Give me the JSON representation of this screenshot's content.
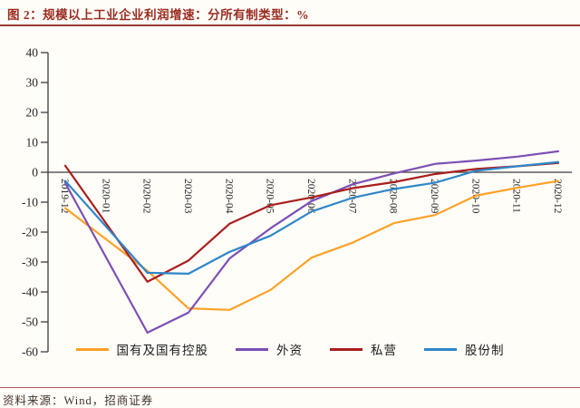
{
  "header": {
    "title": "图 2：规模以上工业企业利润增速：分所有制类型：%"
  },
  "footer": {
    "source": "资料来源：Wind，招商证券"
  },
  "colors": {
    "title_maroon": "#9a2b1f",
    "rule_maroon": "#9a3b2e",
    "footer_rule": "#a85a50",
    "axis_line": "#3d3d3d",
    "axis_text": "#262626",
    "background": "#fffdf8"
  },
  "chart_data": {
    "type": "line",
    "title": "规模以上工业企业利润增速：分所有制类型：%",
    "xlabel": "",
    "ylabel": "",
    "ylim": [
      -60,
      40
    ],
    "yticks": [
      40,
      30,
      20,
      10,
      0,
      -10,
      -20,
      -30,
      -40,
      -50,
      -60
    ],
    "grid": false,
    "legend_position": "bottom",
    "categories": [
      "2019-12",
      "2020-01",
      "2020-02",
      "2020-03",
      "2020-04",
      "2020-05",
      "2020-06",
      "2020-07",
      "2020-08",
      "2020-09",
      "2020-10",
      "2020-11",
      "2020-12"
    ],
    "series": [
      {
        "name": "国有及国有控股",
        "color": "#ffa127",
        "values": [
          -12.0,
          null,
          -32.9,
          -45.5,
          -46.0,
          -39.3,
          -28.5,
          -23.5,
          -17.0,
          -14.3,
          -7.8,
          -5.2,
          -2.9
        ]
      },
      {
        "name": "外资",
        "color": "#7d4fb5",
        "values": [
          -3.6,
          null,
          -53.6,
          -46.9,
          -28.8,
          -18.7,
          -9.6,
          -4.0,
          -0.4,
          2.8,
          3.9,
          5.2,
          7.0
        ]
      },
      {
        "name": "私营",
        "color": "#a81e1e",
        "values": [
          2.2,
          null,
          -36.6,
          -29.5,
          -17.2,
          -11.0,
          -8.4,
          -5.3,
          -3.3,
          -0.6,
          1.1,
          2.0,
          3.1
        ]
      },
      {
        "name": "股份制",
        "color": "#2f86c8",
        "values": [
          -2.9,
          null,
          -33.6,
          -33.9,
          -26.6,
          -21.2,
          -13.1,
          -8.5,
          -5.6,
          -3.5,
          0.5,
          2.0,
          3.4
        ]
      }
    ]
  }
}
